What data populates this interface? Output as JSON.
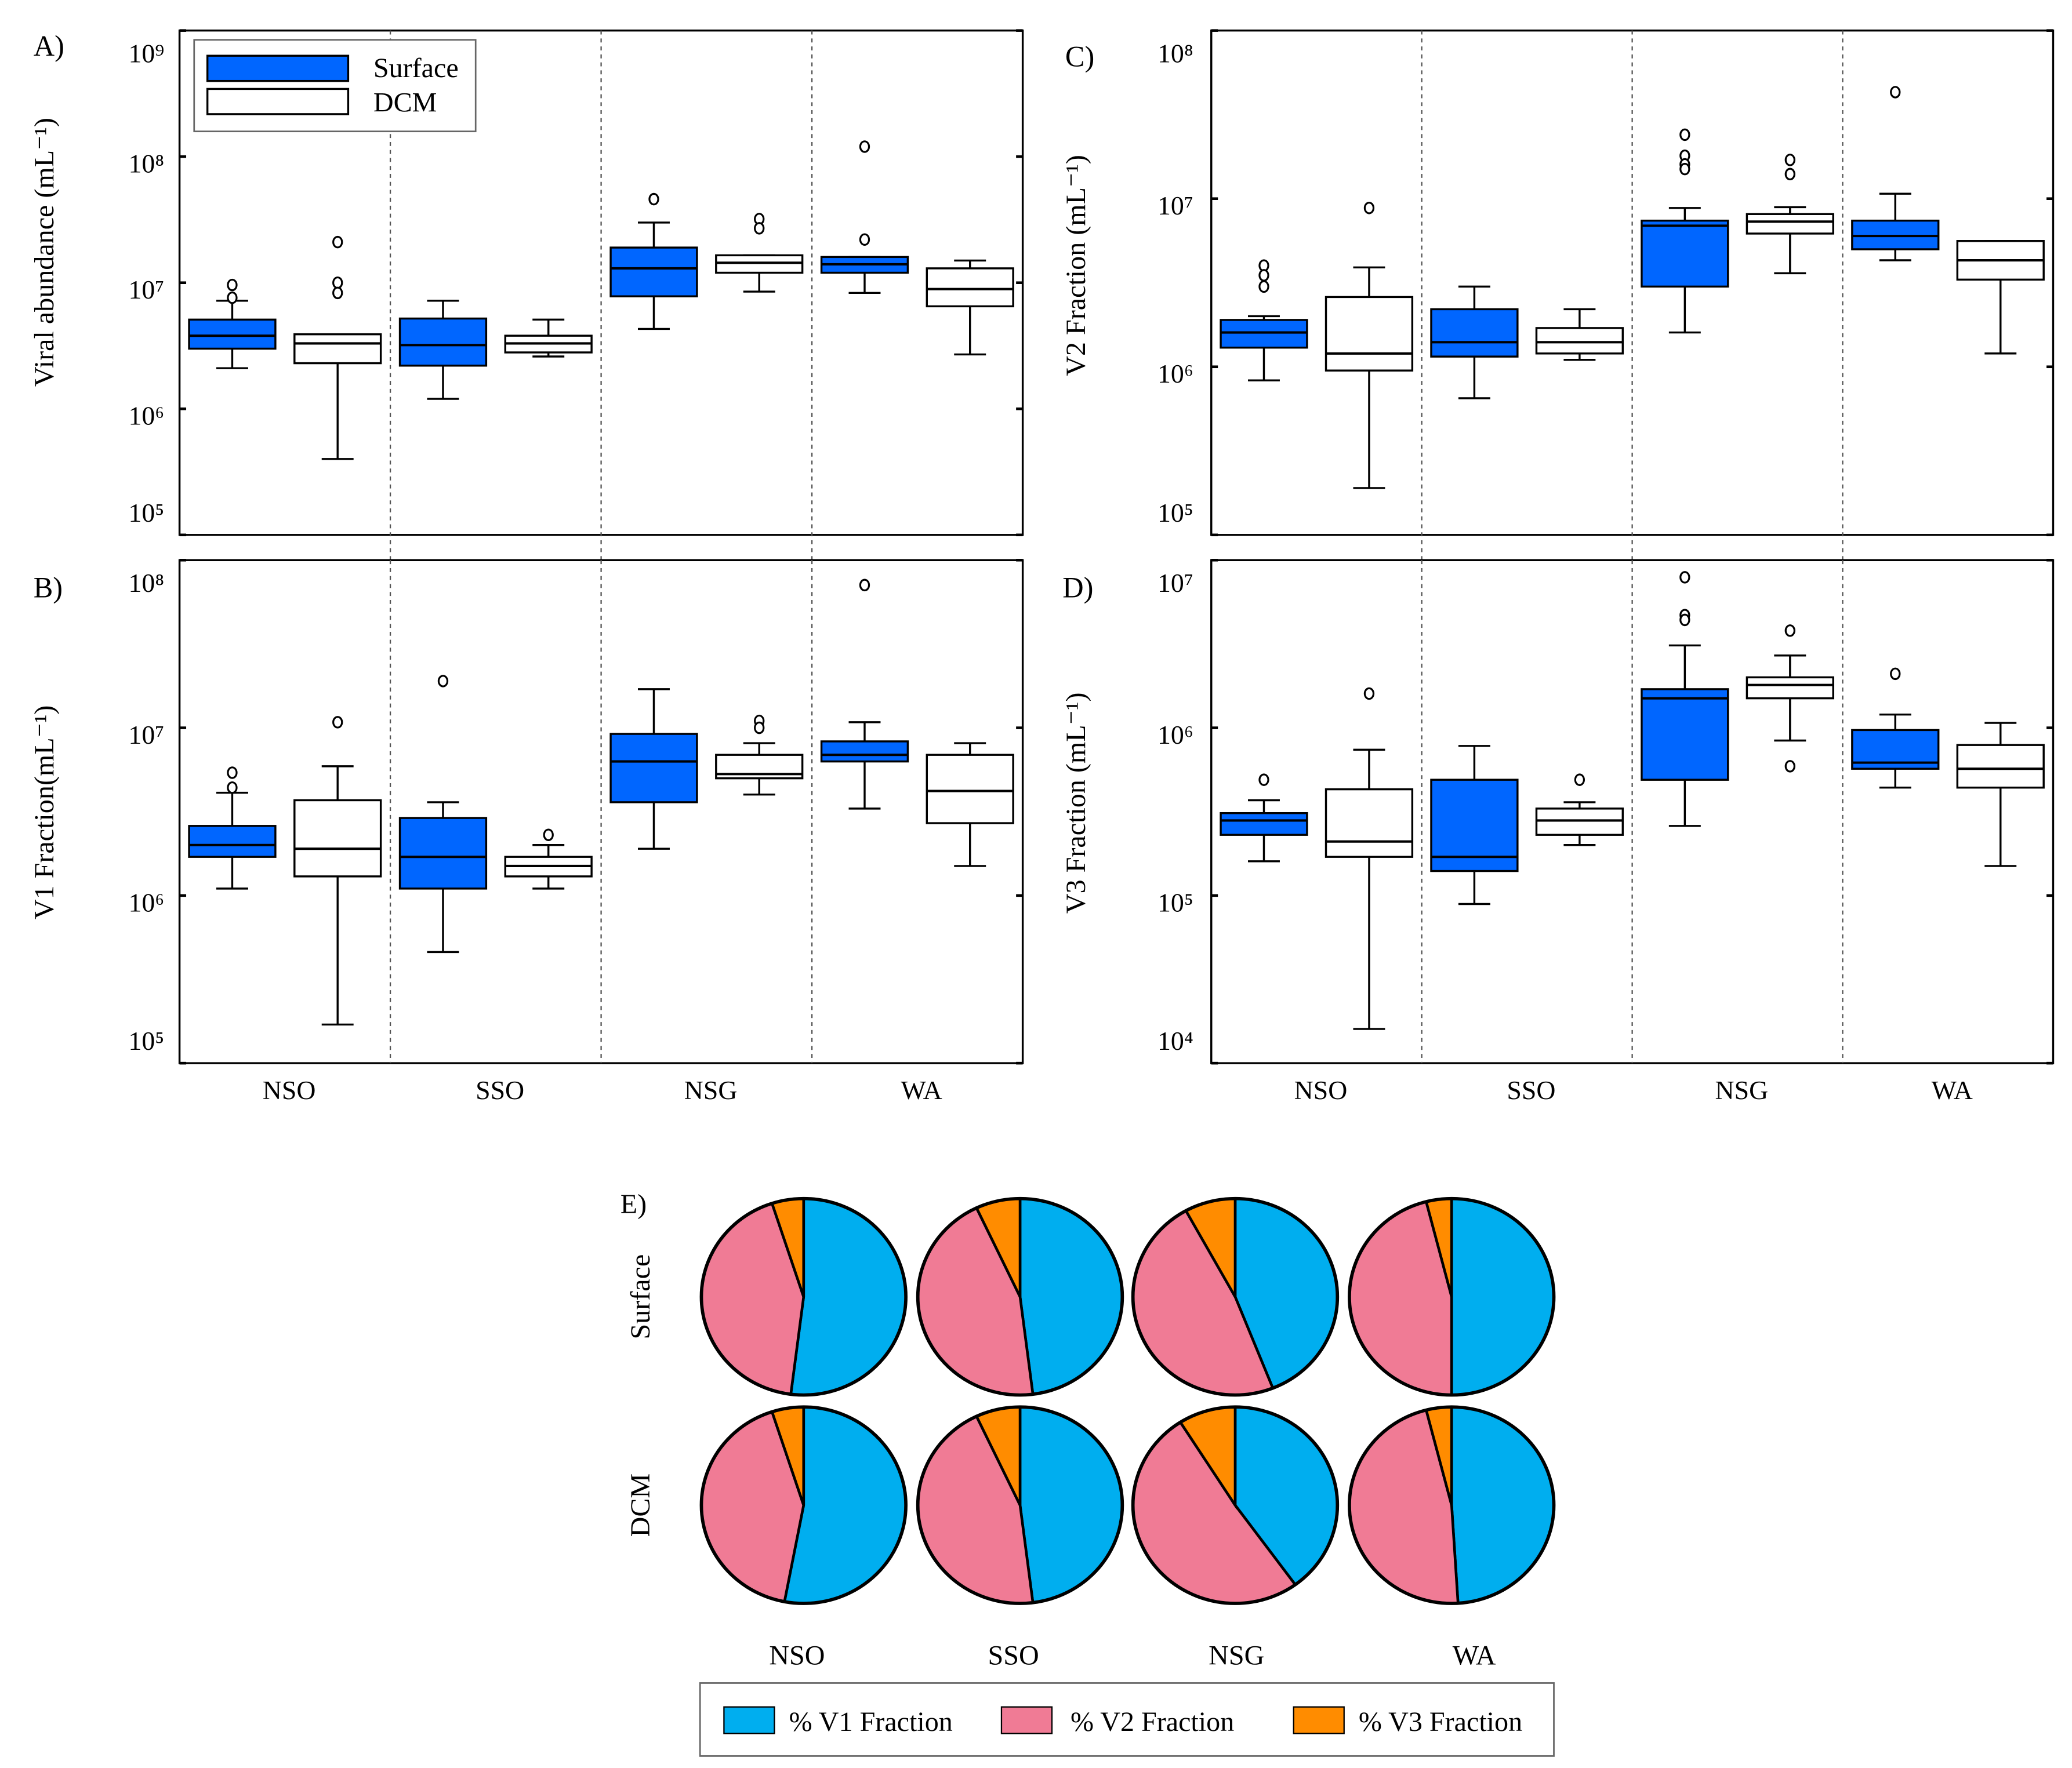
{
  "colors": {
    "surface": "#0066ff",
    "dcm": "#ffffff",
    "v1": "#00aeef",
    "v2": "#f07b95",
    "v3": "#ff8c00"
  },
  "legend": {
    "surface": "Surface",
    "dcm": "DCM"
  },
  "pie_legend": {
    "v1": "% V1 Fraction",
    "v2": "% V2 Fraction",
    "v3": "% V3 Fraction"
  },
  "chart_data": [
    {
      "type": "boxplot",
      "panel": "A)",
      "ylabel": "Viral abundance (mL⁻¹)",
      "yscale": "log",
      "ylim_log10": [
        5,
        9
      ],
      "tick_labels": [
        "10⁹",
        "10⁸",
        "10⁷",
        "10⁶",
        "10⁵"
      ],
      "categories": [
        "NSO",
        "SSO",
        "NSG",
        "WA"
      ],
      "series": [
        {
          "name": "Surface",
          "boxes": [
            {
              "min": 2100000.0,
              "q1": 3000000.0,
              "median": 3800000.0,
              "q3": 5100000.0,
              "max": 7200000.0,
              "outliers": [
                9600000.0,
                7600000.0
              ]
            },
            {
              "min": 1200000.0,
              "q1": 2200000.0,
              "median": 3200000.0,
              "q3": 5200000.0,
              "max": 7200000.0,
              "outliers": []
            },
            {
              "min": 4300000.0,
              "q1": 7800000.0,
              "median": 13000000.0,
              "q3": 19000000.0,
              "max": 30000000.0,
              "outliers": [
                46000000.0
              ]
            },
            {
              "min": 8300000.0,
              "q1": 12000000.0,
              "median": 14000000.0,
              "q3": 16000000.0,
              "max": 16000000.0,
              "outliers": [
                120000000.0,
                22000000.0
              ]
            }
          ]
        },
        {
          "name": "DCM",
          "boxes": [
            {
              "min": 400000.0,
              "q1": 2300000.0,
              "median": 3300000.0,
              "q3": 3900000.0,
              "max": 3900000.0,
              "outliers": [
                21000000.0,
                10000000.0,
                8300000.0
              ]
            },
            {
              "min": 2600000.0,
              "q1": 2800000.0,
              "median": 3300000.0,
              "q3": 3800000.0,
              "max": 5100000.0,
              "outliers": []
            },
            {
              "min": 8500000.0,
              "q1": 12000000.0,
              "median": 14400000.0,
              "q3": 16500000.0,
              "max": 16500000.0,
              "outliers": [
                32000000.0,
                27000000.0
              ]
            },
            {
              "min": 2700000.0,
              "q1": 6500000.0,
              "median": 8900000.0,
              "q3": 13000000.0,
              "max": 15000000.0,
              "outliers": []
            }
          ]
        }
      ]
    },
    {
      "type": "boxplot",
      "panel": "B)",
      "ylabel": "V1 Fraction(mL⁻¹)",
      "yscale": "log",
      "ylim_log10": [
        5,
        8
      ],
      "tick_labels": [
        "10⁸",
        "10⁷",
        "10⁶",
        "10⁵"
      ],
      "categories": [
        "NSO",
        "SSO",
        "NSG",
        "WA"
      ],
      "series": [
        {
          "name": "Surface",
          "boxes": [
            {
              "min": 1100000.0,
              "q1": 1700000.0,
              "median": 2000000.0,
              "q3": 2600000.0,
              "max": 4100000.0,
              "outliers": [
                5400000.0,
                4400000.0
              ]
            },
            {
              "min": 460000.0,
              "q1": 1100000.0,
              "median": 1700000.0,
              "q3": 2900000.0,
              "max": 3600000.0,
              "outliers": [
                19000000.0
              ]
            },
            {
              "min": 1900000.0,
              "q1": 3600000.0,
              "median": 6300000.0,
              "q3": 9200000.0,
              "max": 17000000.0,
              "outliers": []
            },
            {
              "min": 3300000.0,
              "q1": 6300000.0,
              "median": 6900000.0,
              "q3": 8300000.0,
              "max": 10800000.0,
              "outliers": [
                71000000.0
              ]
            }
          ]
        },
        {
          "name": "DCM",
          "boxes": [
            {
              "min": 170000.0,
              "q1": 1300000.0,
              "median": 1900000.0,
              "q3": 3700000.0,
              "max": 5900000.0,
              "outliers": [
                10800000.0
              ]
            },
            {
              "min": 1100000.0,
              "q1": 1300000.0,
              "median": 1500000.0,
              "q3": 1700000.0,
              "max": 2000000.0,
              "outliers": [
                2300000.0
              ]
            },
            {
              "min": 4000000.0,
              "q1": 5000000.0,
              "median": 5300000.0,
              "q3": 6900000.0,
              "max": 8100000.0,
              "outliers": [
                11000000.0,
                10000000.0
              ]
            },
            {
              "min": 1500000.0,
              "q1": 2700000.0,
              "median": 4200000.0,
              "q3": 6900000.0,
              "max": 8100000.0,
              "outliers": []
            }
          ]
        }
      ]
    },
    {
      "type": "boxplot",
      "panel": "C)",
      "ylabel": "V2 Fraction (mL⁻¹)",
      "yscale": "log",
      "ylim_log10": [
        5,
        8
      ],
      "tick_labels": [
        "10⁸",
        "10⁷",
        "10⁶",
        "10⁵"
      ],
      "categories": [
        "NSO",
        "SSO",
        "NSG",
        "WA"
      ],
      "series": [
        {
          "name": "Surface",
          "boxes": [
            {
              "min": 830000.0,
              "q1": 1300000.0,
              "median": 1600000.0,
              "q3": 1900000.0,
              "max": 2000000.0,
              "outliers": [
                4000000.0,
                3500000.0,
                3000000.0
              ]
            },
            {
              "min": 650000.0,
              "q1": 1150000.0,
              "median": 1400000.0,
              "q3": 2200000.0,
              "max": 3000000.0,
              "outliers": []
            },
            {
              "min": 1600000.0,
              "q1": 3000000.0,
              "median": 6900000.0,
              "q3": 7400000.0,
              "max": 8800000.0,
              "outliers": [
                24000000.0,
                18000000.0,
                16000000.0,
                15000000.0
              ]
            },
            {
              "min": 4300000.0,
              "q1": 5000000.0,
              "median": 6000000.0,
              "q3": 7400000.0,
              "max": 10700000.0,
              "outliers": [
                43000000.0
              ]
            }
          ]
        },
        {
          "name": "DCM",
          "boxes": [
            {
              "min": 190000.0,
              "q1": 950000.0,
              "median": 1200000.0,
              "q3": 2600000.0,
              "max": 3900000.0,
              "outliers": [
                8800000.0
              ]
            },
            {
              "min": 1100000.0,
              "q1": 1200000.0,
              "median": 1400000.0,
              "q3": 1700000.0,
              "max": 2200000.0,
              "outliers": []
            },
            {
              "min": 3600000.0,
              "q1": 6200000.0,
              "median": 7300000.0,
              "q3": 8100000.0,
              "max": 8900000.0,
              "outliers": [
                17000000.0,
                14000000.0
              ]
            },
            {
              "min": 1200000.0,
              "q1": 3300000.0,
              "median": 4300000.0,
              "q3": 5600000.0,
              "max": 5600000.0,
              "outliers": []
            }
          ]
        }
      ]
    },
    {
      "type": "boxplot",
      "panel": "D)",
      "ylabel": "V3 Fraction (mL⁻¹)",
      "yscale": "log",
      "ylim_log10": [
        4,
        7
      ],
      "tick_labels": [
        "10⁷",
        "10⁶",
        "10⁵",
        "10⁴"
      ],
      "categories": [
        "NSO",
        "SSO",
        "NSG",
        "WA"
      ],
      "series": [
        {
          "name": "Surface",
          "boxes": [
            {
              "min": 160000.0,
              "q1": 230000.0,
              "median": 280000.0,
              "q3": 310000.0,
              "max": 370000.0,
              "outliers": [
                490000.0
              ]
            },
            {
              "min": 89000.0,
              "q1": 140000.0,
              "median": 170000.0,
              "q3": 490000.0,
              "max": 780000.0,
              "outliers": []
            },
            {
              "min": 260000.0,
              "q1": 490000.0,
              "median": 1500000.0,
              "q3": 1700000.0,
              "max": 3100000.0,
              "outliers": [
                7900000.0,
                4700000.0,
                4400000.0
              ]
            },
            {
              "min": 440000.0,
              "q1": 570000.0,
              "median": 620000.0,
              "q3": 970000.0,
              "max": 1200000.0,
              "outliers": [
                2100000.0
              ]
            }
          ]
        },
        {
          "name": "DCM",
          "boxes": [
            {
              "min": 16000.0,
              "q1": 170000.0,
              "median": 210000.0,
              "q3": 430000.0,
              "max": 740000.0,
              "outliers": [
                1600000.0
              ]
            },
            {
              "min": 200000.0,
              "q1": 230000.0,
              "median": 280000.0,
              "q3": 330000.0,
              "max": 360000.0,
              "outliers": [
                490000.0
              ]
            },
            {
              "min": 840000.0,
              "q1": 1500000.0,
              "median": 1800000.0,
              "q3": 2000000.0,
              "max": 2700000.0,
              "outliers": [
                3800000.0,
                590000.0
              ]
            },
            {
              "min": 150000.0,
              "q1": 440000.0,
              "median": 570000.0,
              "q3": 790000.0,
              "max": 1070000.0,
              "outliers": []
            }
          ]
        }
      ]
    },
    {
      "type": "pie",
      "panel": "E)",
      "categories": [
        "NSO",
        "SSO",
        "NSG",
        "WA"
      ],
      "rows": [
        "Surface",
        "DCM"
      ],
      "slices": [
        "% V1 Fraction",
        "% V2 Fraction",
        "% V3 Fraction"
      ],
      "values": {
        "Surface": [
          [
            52,
            43,
            5
          ],
          [
            48,
            45,
            7
          ],
          [
            44,
            48,
            8
          ],
          [
            50,
            46,
            4
          ]
        ],
        "DCM": [
          [
            53,
            42,
            5
          ],
          [
            48,
            45,
            7
          ],
          [
            40,
            51,
            9
          ],
          [
            49,
            47,
            4
          ]
        ]
      }
    }
  ]
}
